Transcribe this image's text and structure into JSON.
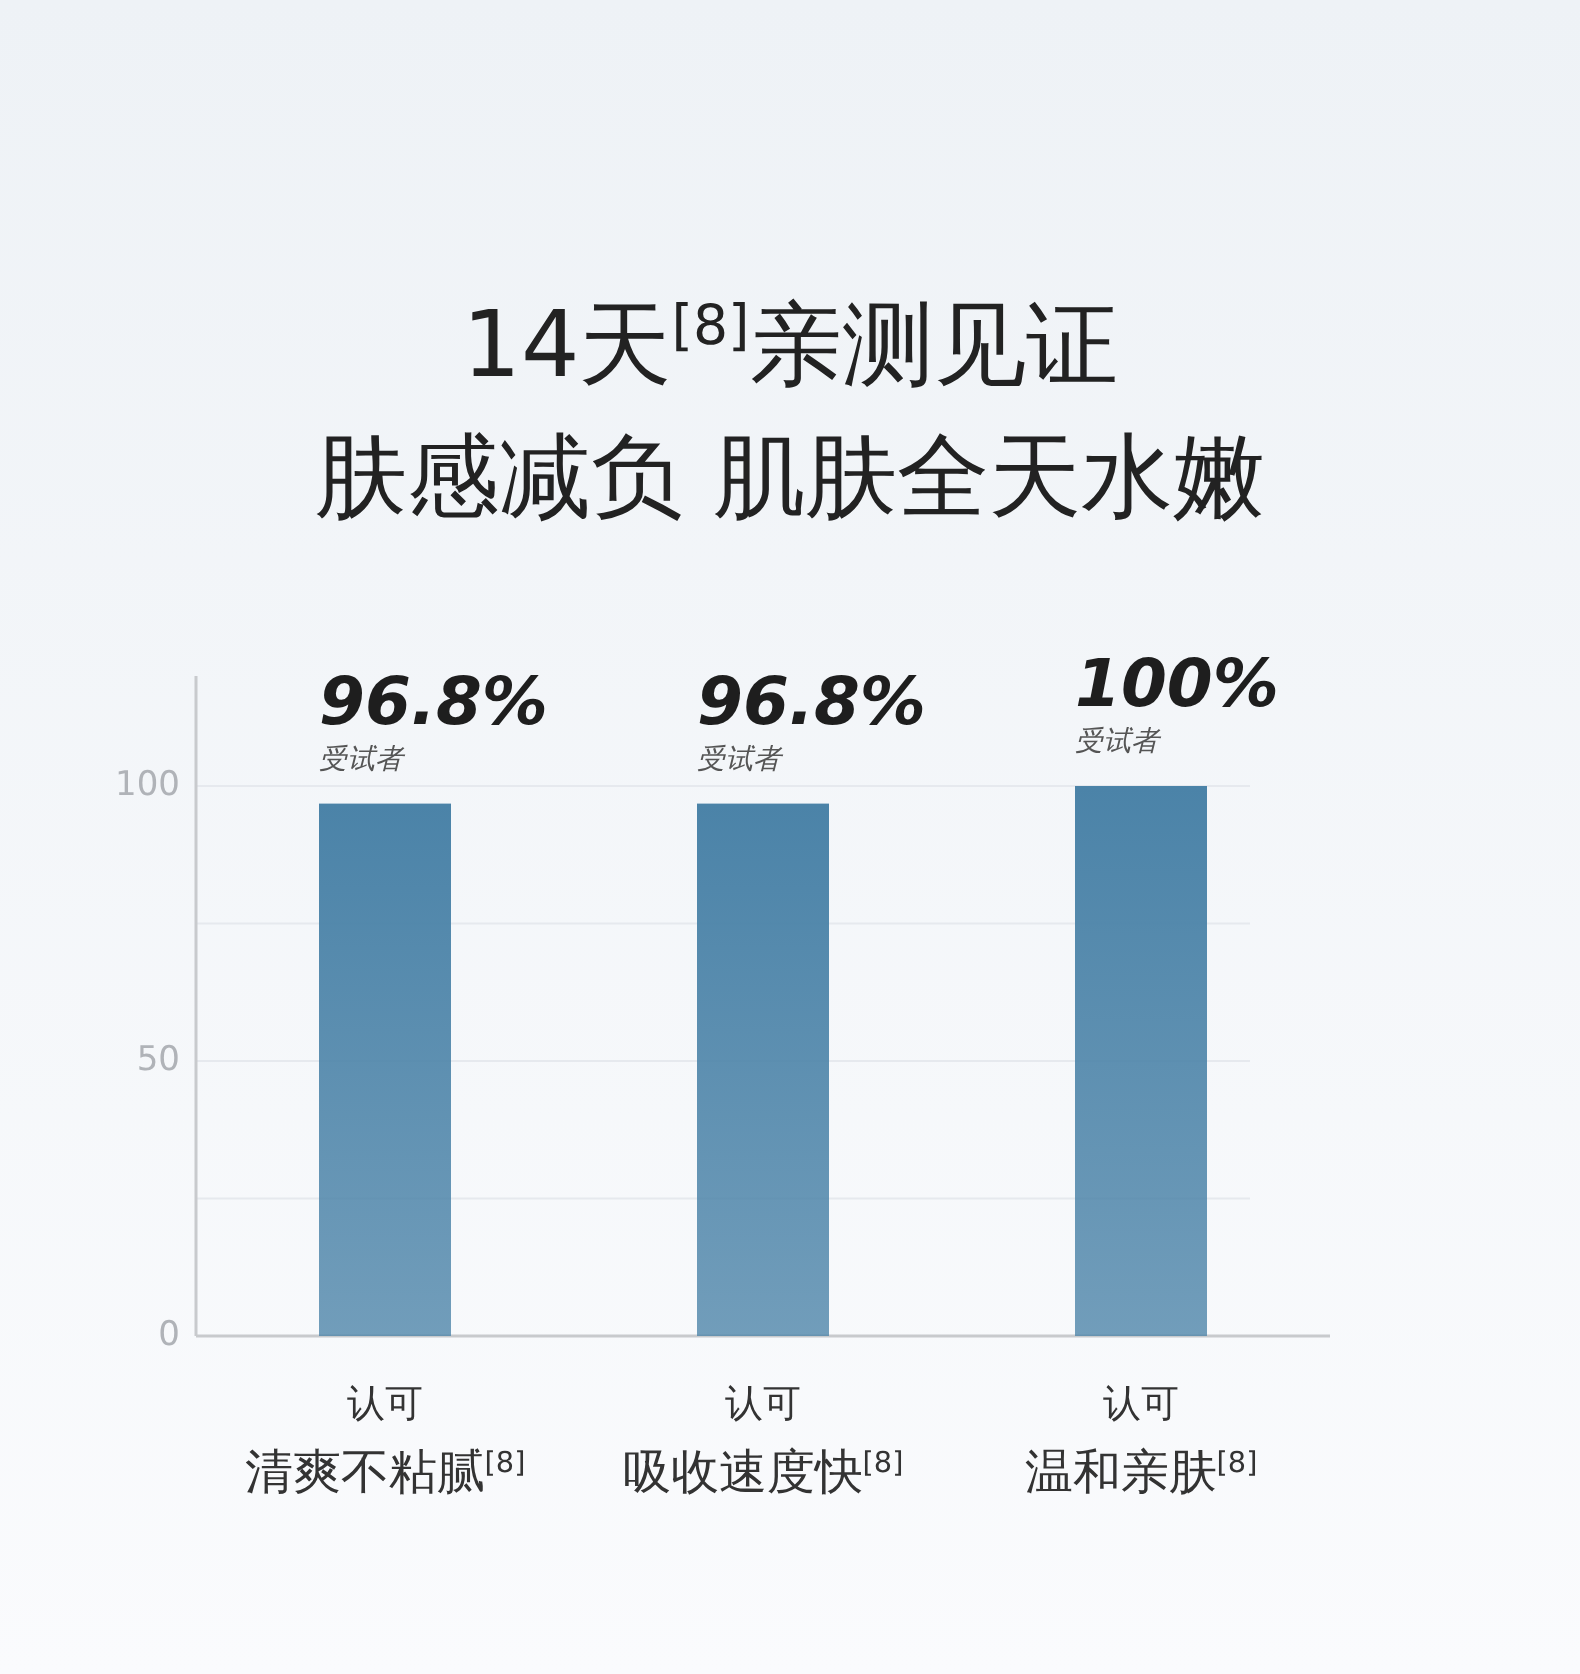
{
  "chart_data": {
    "type": "bar",
    "title": "14天$^{[8]}$亲测见证",
    "subtitle": "肤感减负 肌肤全天水嫩",
    "categories": [
      "清爽不粘腻$^{[8]}$",
      "吸收速度快$^{[8]}$",
      "温和亲肤$^{[8]}$"
    ],
    "values": [
      96.8,
      96.8,
      100
    ],
    "color": "#4b83a8",
    "value_labels": [
      "96.8%",
      "96.8%",
      "100%"
    ],
    "annotations": [
      {
        "text": "受试者",
        "x": "清爽不粘腻$^{[8]}$",
        "y": 96.8
      },
      {
        "text": "受试者",
        "x": "吸收速度快$^{[8]}$",
        "y": 96.8
      },
      {
        "text": "受试者",
        "x": "温和亲肤$^{[8]}$",
        "y": 100
      },
      "认可",
      "认可",
      "认可"
    ],
    "ylim": [
      0,
      120
    ],
    "yticks": [
      0,
      {
        "value": 25,
        "label": null
      },
      50,
      {
        "value": 75,
        "label": null
      },
      100
    ],
    "grid": "y"
  }
}
